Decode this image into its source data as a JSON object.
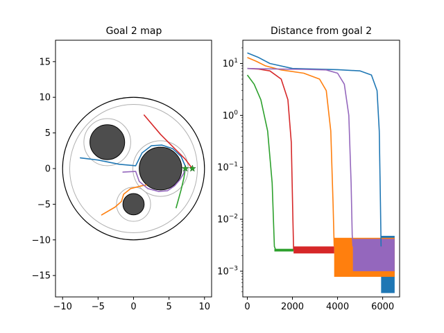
{
  "chart_data": [
    {
      "type": "line",
      "title": "Goal 2 map",
      "xlabel": "",
      "ylabel": "",
      "xlim": [
        -11,
        11
      ],
      "ylim": [
        -18,
        18
      ],
      "x_ticks": [
        -10,
        -5,
        0,
        5,
        10
      ],
      "y_ticks": [
        -15,
        -10,
        -5,
        0,
        5,
        10,
        15
      ],
      "x_tick_labels": [
        "−10",
        "−5",
        "0",
        "5",
        "10"
      ],
      "y_tick_labels": [
        "−15",
        "−10",
        "−5",
        "0",
        "5",
        "10",
        "15"
      ],
      "boundary": {
        "center": [
          0,
          0
        ],
        "radius": 10,
        "color": "#000000"
      },
      "inner_circle": {
        "center": [
          0,
          0
        ],
        "radius": 9,
        "color": "#b0b0b0"
      },
      "obstacles": [
        {
          "center": [
            -3.7,
            3.7
          ],
          "radius": 2.45,
          "halo_radius": 3.3
        },
        {
          "center": [
            3.8,
            0
          ],
          "radius": 3.0,
          "halo_radius": 3.9
        },
        {
          "center": [
            0,
            -5
          ],
          "radius": 1.5,
          "halo_radius": 2.4
        }
      ],
      "goals": [
        {
          "x": 7.3,
          "y": 0,
          "color": "#2ca02c"
        },
        {
          "x": 8.3,
          "y": 0,
          "color": "#2ca02c"
        }
      ],
      "series": [
        {
          "color": "#1f77b4",
          "x": [
            -7.5,
            -5,
            -2,
            0.3,
            1.2,
            2.5,
            4,
            5.5,
            6.7,
            7.4
          ],
          "y": [
            1.5,
            1.2,
            0.6,
            0.4,
            2.2,
            3.2,
            3.3,
            2.8,
            1.7,
            0.1
          ]
        },
        {
          "color": "#ff7f0e",
          "x": [
            -4.5,
            -2.6,
            -1.7,
            -1.4,
            -0.4,
            1.2,
            1.8
          ],
          "y": [
            -6.5,
            -5.4,
            -4.6,
            -3.6,
            -2.8,
            -2.4,
            -2.3
          ]
        },
        {
          "color": "#2ca02c",
          "x": [
            6.0,
            6.7,
            7.1,
            7.3
          ],
          "y": [
            -5.5,
            -3.0,
            -1.3,
            0
          ]
        },
        {
          "color": "#d62728",
          "x": [
            1.5,
            3.8,
            5.8,
            7.3,
            8.2
          ],
          "y": [
            7.5,
            4.8,
            2.8,
            1.3,
            0.1
          ]
        },
        {
          "color": "#9467bd",
          "x": [
            -1.5,
            0.3,
            0.8,
            2.0,
            3.5,
            4.8,
            5.8,
            6.5,
            7.0,
            7.3
          ],
          "y": [
            -0.5,
            -0.4,
            -1.8,
            -2.8,
            -3.2,
            -3.1,
            -2.4,
            -1.6,
            -0.8,
            0
          ]
        }
      ]
    },
    {
      "type": "line",
      "title": "Distance from goal 2",
      "xlabel": "",
      "ylabel": "",
      "yscale": "log",
      "xlim": [
        -200,
        6750
      ],
      "ylim": [
        0.00032,
        28
      ],
      "x_ticks": [
        0,
        2000,
        4000,
        6000
      ],
      "x_tick_labels": [
        "0",
        "2000",
        "4000",
        "6000"
      ],
      "y_ticks": [
        0.001,
        0.01,
        0.1,
        1,
        10
      ],
      "y_tick_bases": [
        "10",
        "10",
        "10",
        "10",
        "10"
      ],
      "y_tick_exponents": [
        "−3",
        "−2",
        "−1",
        "0",
        "1"
      ],
      "series": [
        {
          "color": "#1f77b4",
          "x": [
            0,
            500,
            1000,
            2000,
            3000,
            4000,
            5000,
            5500,
            5750,
            5850,
            5900,
            5930
          ],
          "y": [
            16,
            13,
            10,
            8,
            7.8,
            7.6,
            7.2,
            6,
            3,
            0.5,
            0.02,
            0.003
          ]
        },
        {
          "color": "#ff7f0e",
          "x": [
            0,
            400,
            800,
            1500,
            2500,
            3200,
            3500,
            3700,
            3800,
            3850
          ],
          "y": [
            13,
            11,
            9,
            7.5,
            6.5,
            5,
            3,
            0.5,
            0.02,
            0.003
          ]
        },
        {
          "color": "#2ca02c",
          "x": [
            0,
            300,
            600,
            900,
            1100,
            1200,
            1250
          ],
          "y": [
            6,
            4,
            2,
            0.5,
            0.05,
            0.003,
            0.0026
          ]
        },
        {
          "color": "#d62728",
          "x": [
            0,
            500,
            1000,
            1500,
            1800,
            1950,
            2020,
            2050
          ],
          "y": [
            8,
            7.8,
            7.2,
            5,
            2,
            0.3,
            0.01,
            0.0026
          ]
        },
        {
          "color": "#9467bd",
          "x": [
            0,
            500,
            1500,
            2500,
            3500,
            4000,
            4300,
            4500,
            4600,
            4650,
            4680
          ],
          "y": [
            8,
            7.9,
            7.8,
            7.7,
            7.5,
            6.5,
            4,
            1,
            0.05,
            0.005,
            0.003
          ]
        }
      ],
      "noise_bands": [
        {
          "color": "#1f77b4",
          "x0": 5930,
          "x1": 6530,
          "y0": 0.00038,
          "y1": 0.0048
        },
        {
          "color": "#ff7f0e",
          "x0": 3850,
          "x1": 6530,
          "y0": 0.00078,
          "y1": 0.0044
        },
        {
          "color": "#9467bd",
          "x0": 4680,
          "x1": 6530,
          "y0": 0.001,
          "y1": 0.0042
        },
        {
          "color": "#2ca02c",
          "x0": 1200,
          "x1": 2050,
          "y0": 0.0024,
          "y1": 0.0027
        },
        {
          "color": "#d62728",
          "x0": 2050,
          "x1": 3850,
          "y0": 0.0022,
          "y1": 0.003
        }
      ]
    }
  ]
}
